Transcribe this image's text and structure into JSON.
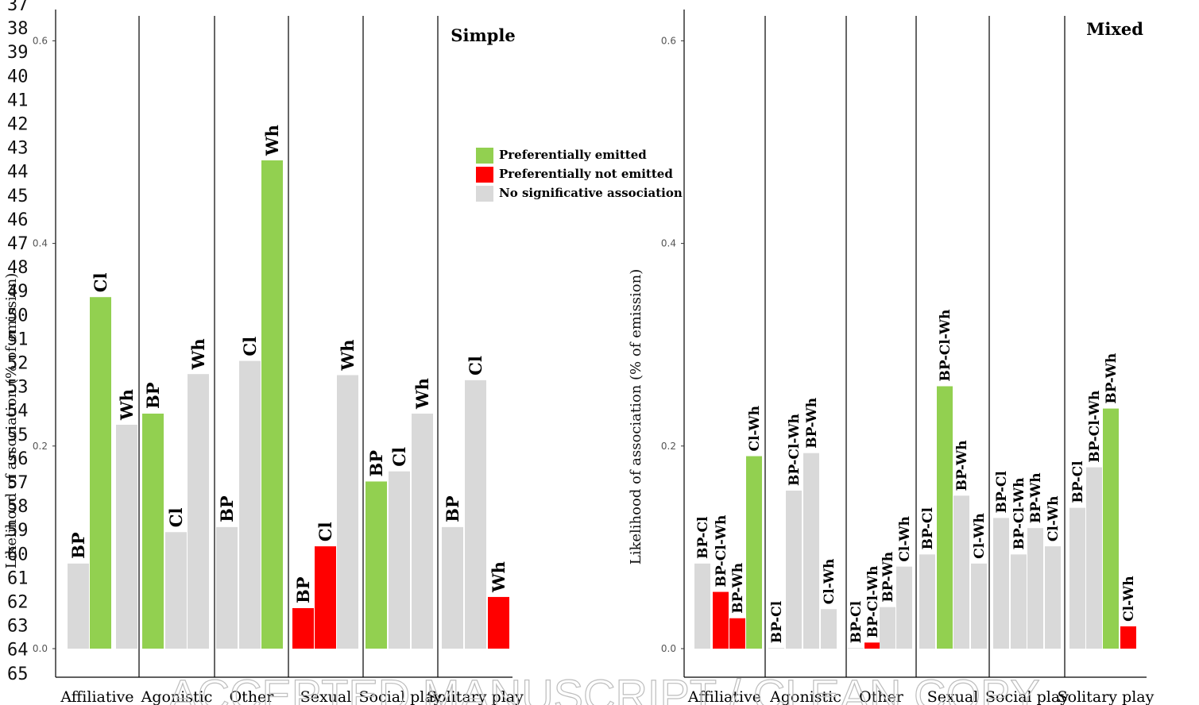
{
  "line_numbers": [
    "37",
    "38",
    "39",
    "40",
    "41",
    "42",
    "43",
    "44",
    "45",
    "46",
    "47",
    "48",
    "49",
    "50",
    "51",
    "52",
    "53",
    "54",
    "55",
    "56",
    "57",
    "58",
    "59",
    "60",
    "61",
    "62",
    "63",
    "64",
    "65"
  ],
  "watermark": "ACCEPTED MANUSCRIPT / CLEAN COPY",
  "colors": {
    "preferentially_emitted": "#92d050",
    "preferentially_not_emitted": "#ff0000",
    "no_association": "#d9d9d9"
  },
  "legend": [
    {
      "label": "Preferentially emitted",
      "status": "emitted"
    },
    {
      "label": "Preferentially not emitted",
      "status": "not_emitted"
    },
    {
      "label": "No significative association",
      "status": "none"
    }
  ],
  "chart_data": [
    {
      "type": "bar",
      "title": "Simple",
      "ylabel": "Likelihood of association (% of emission)",
      "ylim": [
        0,
        0.63
      ],
      "yticks": [
        "0.0",
        "0.2",
        "0.4",
        "0.6"
      ],
      "grid": false,
      "legend_position": "top-right",
      "categories": [
        "Affiliative",
        "Agonistic",
        "Other",
        "Sexual",
        "Social play",
        "Solitary play"
      ],
      "groups": [
        {
          "category": "Affiliative",
          "bars": [
            {
              "label": "BP",
              "value": 0.084,
              "status": "none"
            },
            {
              "label": "Cl",
              "value": 0.347,
              "status": "emitted"
            },
            {
              "label": "Wh",
              "value": 0.221,
              "status": "none"
            }
          ]
        },
        {
          "category": "Agonistic",
          "bars": [
            {
              "label": "BP",
              "value": 0.232,
              "status": "emitted"
            },
            {
              "label": "Cl",
              "value": 0.115,
              "status": "none"
            },
            {
              "label": "Wh",
              "value": 0.271,
              "status": "none"
            }
          ]
        },
        {
          "category": "Other",
          "bars": [
            {
              "label": "BP",
              "value": 0.12,
              "status": "none"
            },
            {
              "label": "Cl",
              "value": 0.284,
              "status": "none"
            },
            {
              "label": "Wh",
              "value": 0.482,
              "status": "emitted"
            }
          ]
        },
        {
          "category": "Sexual",
          "bars": [
            {
              "label": "BP",
              "value": 0.04,
              "status": "not_emitted"
            },
            {
              "label": "Cl",
              "value": 0.101,
              "status": "not_emitted"
            },
            {
              "label": "Wh",
              "value": 0.27,
              "status": "none"
            }
          ]
        },
        {
          "category": "Social play",
          "bars": [
            {
              "label": "BP",
              "value": 0.165,
              "status": "emitted"
            },
            {
              "label": "Cl",
              "value": 0.175,
              "status": "none"
            },
            {
              "label": "Wh",
              "value": 0.232,
              "status": "none"
            }
          ]
        },
        {
          "category": "Solitary play",
          "bars": [
            {
              "label": "BP",
              "value": 0.12,
              "status": "none"
            },
            {
              "label": "Cl",
              "value": 0.265,
              "status": "none"
            },
            {
              "label": "Wh",
              "value": 0.051,
              "status": "not_emitted"
            }
          ]
        }
      ]
    },
    {
      "type": "bar",
      "title": "Mixed",
      "ylabel": "Likelihood of association (% of emission)",
      "ylim": [
        0,
        0.63
      ],
      "yticks": [
        "0.0",
        "0.2",
        "0.4",
        "0.6"
      ],
      "grid": false,
      "categories": [
        "Affiliative",
        "Agonistic",
        "Other",
        "Sexual",
        "Social play",
        "Solitary play"
      ],
      "groups": [
        {
          "category": "Affiliative",
          "bars": [
            {
              "label": "BP-Cl",
              "value": 0.084,
              "status": "none"
            },
            {
              "label": "BP-Cl-Wh",
              "value": 0.056,
              "status": "not_emitted"
            },
            {
              "label": "BP-Wh",
              "value": 0.03,
              "status": "not_emitted"
            },
            {
              "label": "Cl-Wh",
              "value": 0.19,
              "status": "emitted"
            }
          ]
        },
        {
          "category": "Agonistic",
          "bars": [
            {
              "label": "BP-Cl",
              "value": 0.0,
              "status": "none"
            },
            {
              "label": "BP-Cl-Wh",
              "value": 0.156,
              "status": "none"
            },
            {
              "label": "BP-Wh",
              "value": 0.193,
              "status": "none"
            },
            {
              "label": "Cl-Wh",
              "value": 0.039,
              "status": "none"
            }
          ]
        },
        {
          "category": "Other",
          "bars": [
            {
              "label": "BP-Cl",
              "value": 0.0,
              "status": "none"
            },
            {
              "label": "BP-Cl-Wh",
              "value": 0.006,
              "status": "not_emitted"
            },
            {
              "label": "BP-Wh",
              "value": 0.041,
              "status": "none"
            },
            {
              "label": "Cl-Wh",
              "value": 0.081,
              "status": "none"
            }
          ]
        },
        {
          "category": "Sexual",
          "bars": [
            {
              "label": "BP-Cl",
              "value": 0.093,
              "status": "none"
            },
            {
              "label": "BP-Cl-Wh",
              "value": 0.259,
              "status": "emitted"
            },
            {
              "label": "BP-Wh",
              "value": 0.151,
              "status": "none"
            },
            {
              "label": "Cl-Wh",
              "value": 0.084,
              "status": "none"
            }
          ]
        },
        {
          "category": "Social play",
          "bars": [
            {
              "label": "BP-Cl",
              "value": 0.129,
              "status": "none"
            },
            {
              "label": "BP-Cl-Wh",
              "value": 0.093,
              "status": "none"
            },
            {
              "label": "BP-Wh",
              "value": 0.119,
              "status": "none"
            },
            {
              "label": "Cl-Wh",
              "value": 0.101,
              "status": "none"
            }
          ]
        },
        {
          "category": "Solitary play",
          "bars": [
            {
              "label": "BP-Cl",
              "value": 0.139,
              "status": "none"
            },
            {
              "label": "BP-Cl-Wh",
              "value": 0.179,
              "status": "none"
            },
            {
              "label": "BP-Wh",
              "value": 0.237,
              "status": "emitted"
            },
            {
              "label": "Cl-Wh",
              "value": 0.022,
              "status": "not_emitted"
            }
          ]
        }
      ]
    }
  ]
}
